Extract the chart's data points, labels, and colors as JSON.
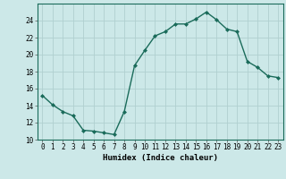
{
  "x": [
    0,
    1,
    2,
    3,
    4,
    5,
    6,
    7,
    8,
    9,
    10,
    11,
    12,
    13,
    14,
    15,
    16,
    17,
    18,
    19,
    20,
    21,
    22,
    23
  ],
  "y": [
    15.2,
    14.1,
    13.3,
    12.8,
    11.1,
    11.0,
    10.8,
    10.6,
    13.3,
    18.7,
    20.5,
    22.2,
    22.7,
    23.6,
    23.6,
    24.2,
    25.0,
    24.1,
    23.0,
    22.7,
    19.2,
    18.5,
    17.5,
    17.3
  ],
  "line_color": "#1a6b5a",
  "marker": "D",
  "marker_size": 2,
  "bg_color": "#cce8e8",
  "grid_color": "#b0d0d0",
  "xlabel": "Humidex (Indice chaleur)",
  "ylim": [
    10,
    26
  ],
  "xlim": [
    -0.5,
    23.5
  ],
  "yticks": [
    10,
    12,
    14,
    16,
    18,
    20,
    22,
    24
  ],
  "xticks": [
    0,
    1,
    2,
    3,
    4,
    5,
    6,
    7,
    8,
    9,
    10,
    11,
    12,
    13,
    14,
    15,
    16,
    17,
    18,
    19,
    20,
    21,
    22,
    23
  ],
  "xtick_labels": [
    "0",
    "1",
    "2",
    "3",
    "4",
    "5",
    "6",
    "7",
    "8",
    "9",
    "10",
    "11",
    "12",
    "13",
    "14",
    "15",
    "16",
    "17",
    "18",
    "19",
    "20",
    "21",
    "22",
    "23"
  ],
  "tick_fontsize": 5.5,
  "xlabel_fontsize": 6.5,
  "xlabel_fontweight": "bold",
  "linewidth": 1.0
}
